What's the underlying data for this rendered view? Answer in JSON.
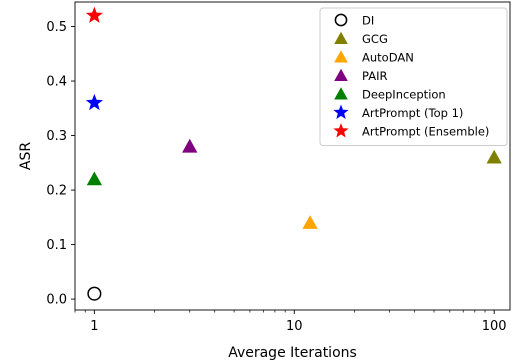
{
  "chart_data": {
    "type": "scatter",
    "xlabel": "Average Iterations",
    "ylabel": "ASR",
    "x_scale": "log",
    "xlim": [
      0.8,
      120
    ],
    "ylim": [
      -0.02,
      0.545
    ],
    "x_ticks": [
      1,
      10,
      100
    ],
    "x_tick_labels": [
      "1",
      "10",
      "100"
    ],
    "y_ticks": [
      0.0,
      0.1,
      0.2,
      0.3,
      0.4,
      0.5
    ],
    "y_tick_labels": [
      "0.0",
      "0.1",
      "0.2",
      "0.3",
      "0.4",
      "0.5"
    ],
    "grid": false,
    "legend_position": "top-right",
    "series": [
      {
        "name": "DI",
        "marker": "circle-open",
        "color": "#000000",
        "x": 1,
        "y": 0.01
      },
      {
        "name": "GCG",
        "marker": "triangle",
        "color": "#808000",
        "x": 100,
        "y": 0.26
      },
      {
        "name": "AutoDAN",
        "marker": "triangle",
        "color": "#ffa500",
        "x": 12,
        "y": 0.14
      },
      {
        "name": "PAIR",
        "marker": "triangle",
        "color": "#800080",
        "x": 3,
        "y": 0.28
      },
      {
        "name": "DeepInception",
        "marker": "triangle",
        "color": "#008000",
        "x": 1,
        "y": 0.22
      },
      {
        "name": "ArtPrompt (Top 1)",
        "marker": "star",
        "color": "#0000ff",
        "x": 1,
        "y": 0.36
      },
      {
        "name": "ArtPrompt (Ensemble)",
        "marker": "star",
        "color": "#ff0000",
        "x": 1,
        "y": 0.52
      }
    ]
  }
}
